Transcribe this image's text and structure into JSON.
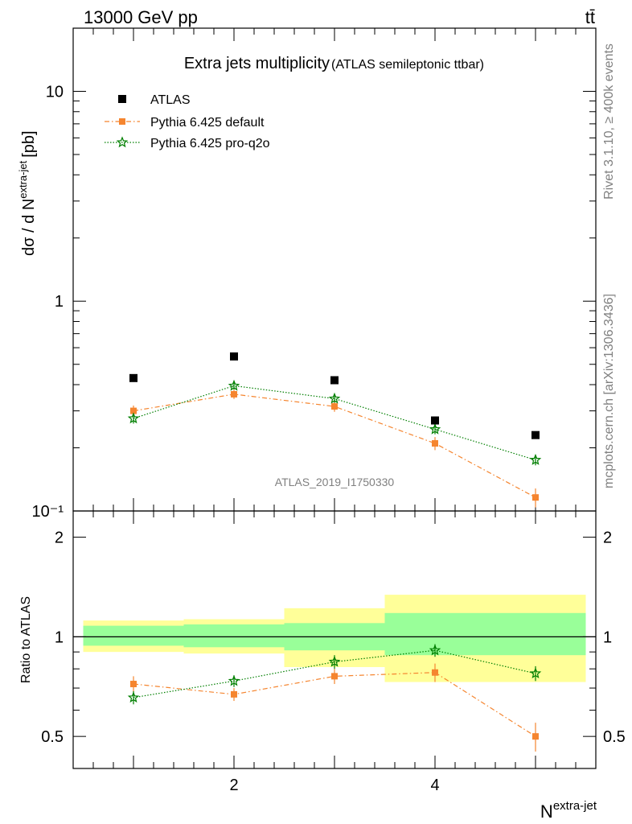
{
  "header": {
    "energy_label": "13000 GeV pp",
    "process_label": "tt̄"
  },
  "side": {
    "rivet_label": "Rivet 3.1.10, ≥ 400k events",
    "mcplots_label": "mcplots.cern.ch [arXiv:1306.3436]"
  },
  "chart_data": {
    "type": "scatter",
    "title": "Extra jets multiplicity",
    "subtitle": "(ATLAS semileptonic ttbar)",
    "watermark": "ATLAS_2019_I1750330",
    "xlabel": "N",
    "xlabel_sup": "extra-jet",
    "ylabel": "dσ / d N",
    "ylabel_sup": "extra-jet",
    "ylabel_unit": "[pb]",
    "xlim": [
      0.4,
      5.6
    ],
    "ylim": [
      0.1,
      20
    ],
    "y_scale": "log",
    "x_ticks": [
      "2",
      "4"
    ],
    "y_ticks": [
      "10",
      "1",
      "10⁻¹"
    ],
    "legend_position": "top-left",
    "x": [
      1,
      2,
      3,
      4,
      5
    ],
    "bin_edges": [
      0.5,
      1.5,
      2.5,
      3.5,
      4.5,
      5.5
    ],
    "series": [
      {
        "name": "ATLAS",
        "color": "#000000",
        "marker": "square",
        "values": [
          0.43,
          0.545,
          0.42,
          0.27,
          0.23
        ]
      },
      {
        "name": "Pythia 6.425 default",
        "color": "#f5852f",
        "marker": "square",
        "line": "dashdot",
        "values": [
          0.3,
          0.36,
          0.315,
          0.21,
          0.116
        ],
        "errors": [
          0.018,
          0.018,
          0.018,
          0.015,
          0.012
        ]
      },
      {
        "name": "Pythia 6.425 pro-q2o",
        "color": "#007f00",
        "marker": "star",
        "line": "dotted",
        "values": [
          0.276,
          0.395,
          0.343,
          0.245,
          0.175
        ],
        "errors": [
          0.015,
          0.016,
          0.015,
          0.013,
          0.01
        ]
      }
    ],
    "ratio": {
      "ylabel": "Ratio to ATLAS",
      "ylim": [
        0.4,
        2.4
      ],
      "y_scale": "log",
      "y_ticks": [
        "2",
        "1",
        "0.5"
      ],
      "band_inner": [
        [
          0.94,
          1.08
        ],
        [
          0.93,
          1.09
        ],
        [
          0.91,
          1.1
        ],
        [
          0.88,
          1.18
        ],
        [
          0.88,
          1.18
        ]
      ],
      "band_outer": [
        [
          0.9,
          1.12
        ],
        [
          0.89,
          1.13
        ],
        [
          0.81,
          1.22
        ],
        [
          0.73,
          1.34
        ],
        [
          0.73,
          1.34
        ]
      ],
      "series": [
        {
          "name": "Pythia 6.425 default",
          "values": [
            0.72,
            0.67,
            0.76,
            0.78,
            0.5
          ],
          "errors": [
            0.04,
            0.03,
            0.04,
            0.05,
            0.05
          ]
        },
        {
          "name": "Pythia 6.425 pro-q2o",
          "values": [
            0.655,
            0.735,
            0.84,
            0.91,
            0.775
          ],
          "errors": [
            0.03,
            0.03,
            0.04,
            0.04,
            0.04
          ]
        }
      ]
    }
  }
}
